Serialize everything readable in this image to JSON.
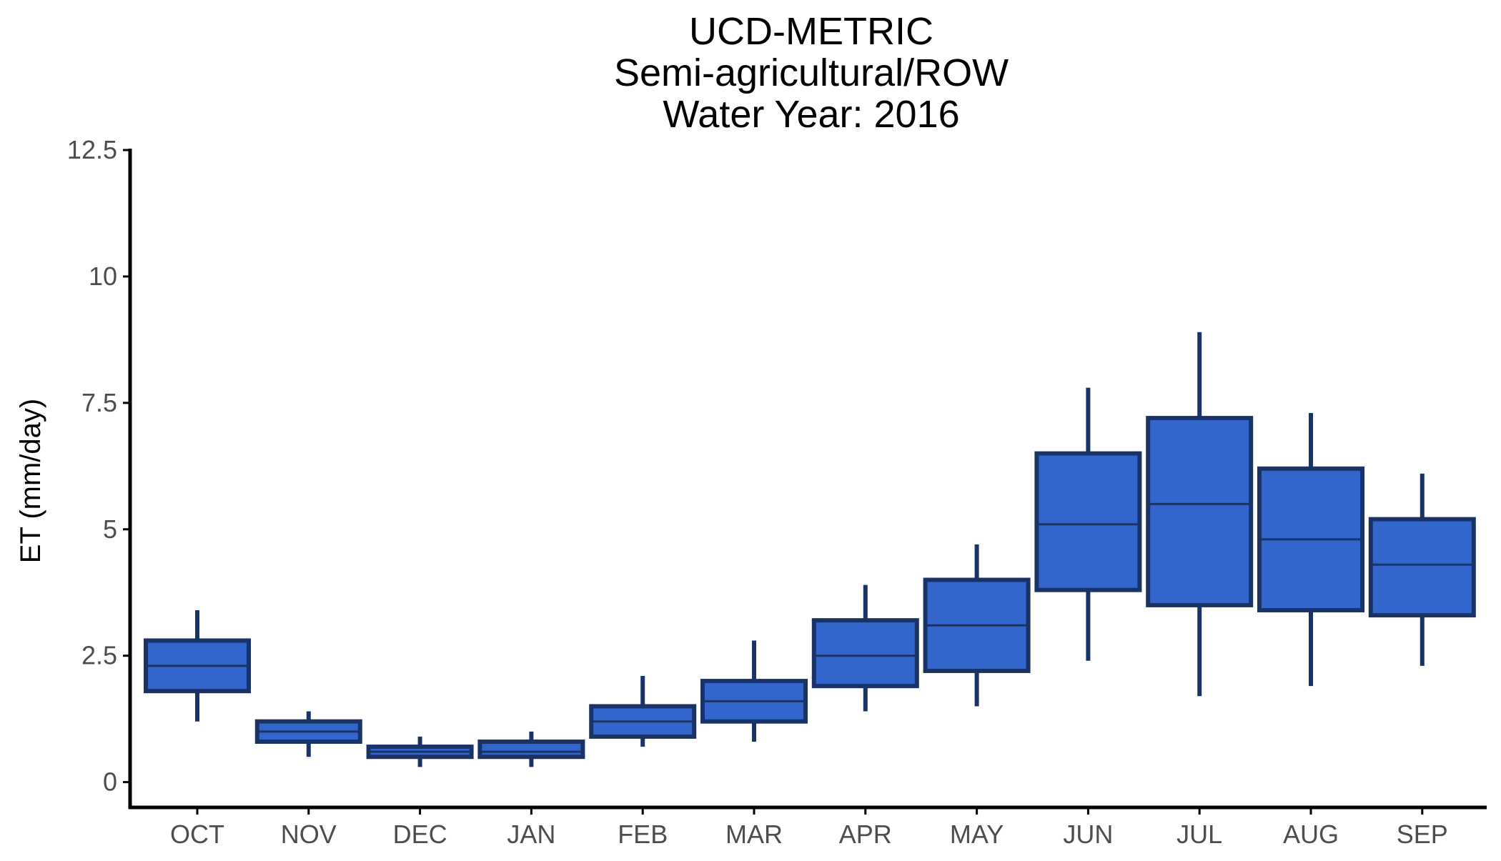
{
  "chart_data": {
    "type": "boxplot",
    "title": [
      "UCD-METRIC",
      "Semi-agricultural/ROW",
      "Water Year: 2016"
    ],
    "xlabel": "",
    "ylabel": "ET (mm/day)",
    "ylim": [
      -0.5,
      12.5
    ],
    "yticks": [
      0,
      2.5,
      5,
      7.5,
      10,
      12.5
    ],
    "ytick_labels": [
      "0",
      "2.5",
      "5",
      "7.5",
      "10",
      "12.5"
    ],
    "categories": [
      "OCT",
      "NOV",
      "DEC",
      "JAN",
      "FEB",
      "MAR",
      "APR",
      "MAY",
      "JUN",
      "JUL",
      "AUG",
      "SEP"
    ],
    "boxes": [
      {
        "min": 1.2,
        "q1": 1.8,
        "median": 2.3,
        "q3": 2.8,
        "max": 3.4
      },
      {
        "min": 0.5,
        "q1": 0.8,
        "median": 1.0,
        "q3": 1.2,
        "max": 1.4
      },
      {
        "min": 0.3,
        "q1": 0.5,
        "median": 0.6,
        "q3": 0.7,
        "max": 0.9
      },
      {
        "min": 0.3,
        "q1": 0.5,
        "median": 0.6,
        "q3": 0.8,
        "max": 1.0
      },
      {
        "min": 0.7,
        "q1": 0.9,
        "median": 1.2,
        "q3": 1.5,
        "max": 2.1
      },
      {
        "min": 0.8,
        "q1": 1.2,
        "median": 1.6,
        "q3": 2.0,
        "max": 2.8
      },
      {
        "min": 1.4,
        "q1": 1.9,
        "median": 2.5,
        "q3": 3.2,
        "max": 3.9
      },
      {
        "min": 1.5,
        "q1": 2.2,
        "median": 3.1,
        "q3": 4.0,
        "max": 4.7
      },
      {
        "min": 2.4,
        "q1": 3.8,
        "median": 5.1,
        "q3": 6.5,
        "max": 7.8
      },
      {
        "min": 1.7,
        "q1": 3.5,
        "median": 5.5,
        "q3": 7.2,
        "max": 8.9
      },
      {
        "min": 1.9,
        "q1": 3.4,
        "median": 4.8,
        "q3": 6.2,
        "max": 7.3
      },
      {
        "min": 2.3,
        "q1": 3.3,
        "median": 4.3,
        "q3": 5.2,
        "max": 6.1
      }
    ],
    "grid": false,
    "legend": "none",
    "colors": {
      "box_fill": "#3366cc",
      "box_stroke": "#1a3366",
      "axis": "#000000",
      "tick_text": "#4d4d4d"
    }
  }
}
